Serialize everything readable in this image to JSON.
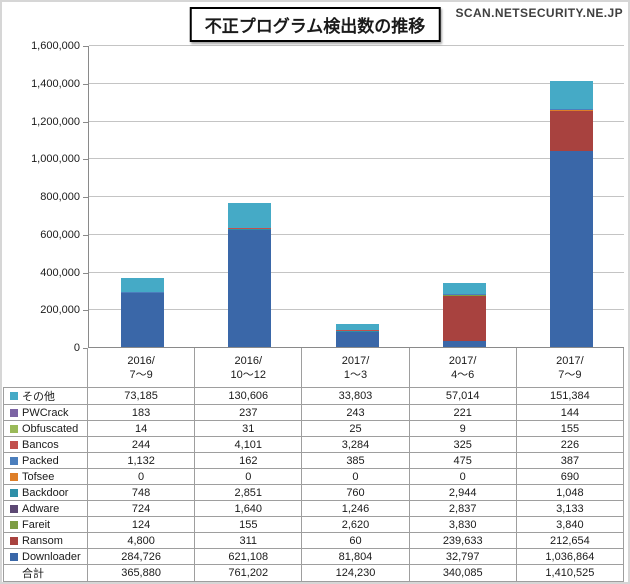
{
  "title": "不正プログラム検出数の推移",
  "watermark": "SCAN.NETSECURITY.NE.JP",
  "chart_data": {
    "type": "bar",
    "stacked": true,
    "title": "不正プログラム検出数の推移",
    "grid": true,
    "legend_position": "data-table-left-column",
    "categories": [
      "2016/7〜9",
      "2016/10〜12",
      "2017/1〜3",
      "2017/4〜6",
      "2017/7〜9"
    ],
    "categories_display": [
      [
        "2016/",
        "7〜9"
      ],
      [
        "2016/",
        "10〜12"
      ],
      [
        "2017/",
        "1〜3"
      ],
      [
        "2017/",
        "4〜6"
      ],
      [
        "2017/",
        "7〜9"
      ]
    ],
    "y_axis": {
      "min": 0,
      "max": 1600000,
      "step": 200000
    },
    "y_tick_labels": [
      "0",
      "200,000",
      "400,000",
      "600,000",
      "800,000",
      "1,000,000",
      "1,200,000",
      "1,400,000",
      "1,600,000"
    ],
    "series": [
      {
        "name": "Downloader",
        "color": "#3A67A8",
        "values": [
          284726,
          621108,
          81804,
          32797,
          1036864
        ]
      },
      {
        "name": "Ransom",
        "color": "#A8423F",
        "values": [
          4800,
          311,
          60,
          239633,
          212654
        ]
      },
      {
        "name": "Fareit",
        "color": "#7E9D44",
        "values": [
          124,
          155,
          2620,
          3830,
          3840
        ]
      },
      {
        "name": "Adware",
        "color": "#5C4873",
        "values": [
          724,
          1640,
          1246,
          2837,
          3133
        ]
      },
      {
        "name": "Backdoor",
        "color": "#2E8FA8",
        "values": [
          748,
          2851,
          760,
          2944,
          1048
        ]
      },
      {
        "name": "Tofsee",
        "color": "#DE7E28",
        "values": [
          0,
          0,
          0,
          0,
          690
        ]
      },
      {
        "name": "Packed",
        "color": "#4B7EBC",
        "values": [
          1132,
          162,
          385,
          475,
          387
        ]
      },
      {
        "name": "Bancos",
        "color": "#C2504D",
        "values": [
          244,
          4101,
          3284,
          325,
          226
        ]
      },
      {
        "name": "Obfuscated",
        "color": "#9ABA59",
        "values": [
          14,
          31,
          25,
          9,
          155
        ]
      },
      {
        "name": "PWCrack",
        "color": "#7C64A4",
        "values": [
          183,
          237,
          243,
          221,
          144
        ]
      },
      {
        "name": "その他",
        "color": "#45AAC6",
        "values": [
          73185,
          130606,
          33803,
          57014,
          151384
        ]
      }
    ],
    "total": {
      "label": "合計",
      "values": [
        365880,
        761202,
        124230,
        340085,
        1410525
      ]
    }
  }
}
